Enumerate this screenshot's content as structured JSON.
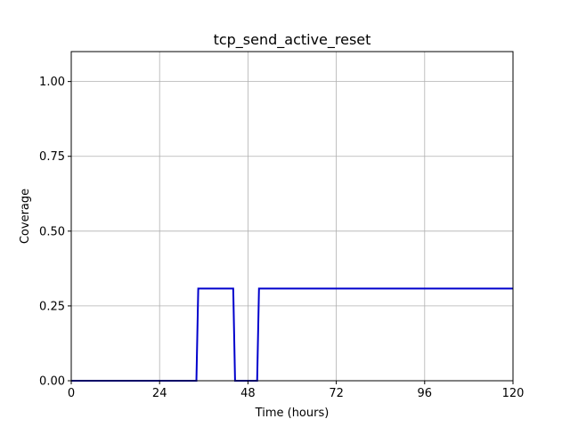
{
  "chart_data": {
    "type": "line",
    "title": "tcp_send_active_reset",
    "xlabel": "Time (hours)",
    "ylabel": "Coverage",
    "xlim": [
      0,
      120
    ],
    "ylim": [
      0,
      1.1
    ],
    "xticks": [
      0,
      24,
      48,
      72,
      96,
      120
    ],
    "yticks": [
      0.0,
      0.25,
      0.5,
      0.75,
      1.0
    ],
    "xtick_labels": [
      "0",
      "24",
      "48",
      "72",
      "96",
      "120"
    ],
    "ytick_labels": [
      "0.00",
      "0.25",
      "0.50",
      "0.75",
      "1.00"
    ],
    "grid": true,
    "series": [
      {
        "color": "#0000cc",
        "x": [
          0,
          34,
          34.5,
          44,
          44.5,
          50.5,
          51,
          120
        ],
        "y": [
          0,
          0,
          0.308,
          0.308,
          0,
          0,
          0.308,
          0.308
        ]
      }
    ]
  }
}
